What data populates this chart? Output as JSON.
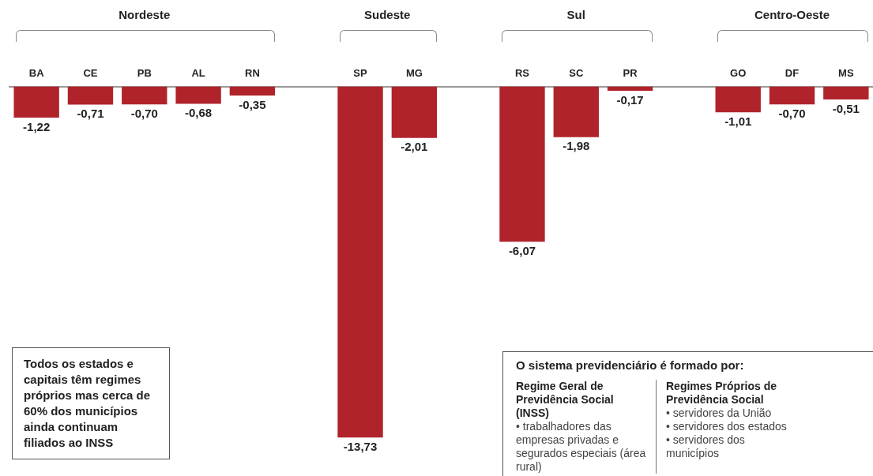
{
  "chart_data": {
    "type": "bar",
    "categories": [
      "BA",
      "CE",
      "PB",
      "AL",
      "RN",
      null,
      "SP",
      "MG",
      null,
      "RS",
      "SC",
      "PR",
      null,
      "GO",
      "DF",
      "MS"
    ],
    "series": [
      {
        "color": "#b0232b",
        "values": [
          -1.22,
          -0.71,
          -0.7,
          -0.68,
          -0.35,
          null,
          -13.73,
          -2.01,
          null,
          -6.07,
          -1.98,
          -0.17,
          null,
          -1.01,
          -0.7,
          -0.51
        ],
        "value_labels": [
          "-1,22",
          "-0,71",
          "-0,70",
          "-0,68",
          "-0,35",
          null,
          "-13,73",
          "-2,01",
          null,
          "-6,07",
          "-1,98",
          "-0,17",
          null,
          "-1,01",
          "-0,70",
          "-0,51"
        ]
      }
    ],
    "grid": false,
    "legend": false,
    "tick_labels": "x",
    "annotations": [
      "Nordeste",
      "Sudeste",
      "Sul",
      "Centro-Oeste",
      "Todos os estados e capitais têm regimes próprios mas cerca de 60% dos municípios ainda continuam filiados ao INSS",
      "O sistema previdenciário é formado por:",
      "Regime Geral de Previdência Social (INSS)",
      "• trabalhadores das empresas privadas e segurados especiais (área rural)",
      "Regimes Próprios de Previdência Social",
      "• servidores da União",
      "• servidores dos estados",
      "• servidores dos municípios"
    ]
  }
}
